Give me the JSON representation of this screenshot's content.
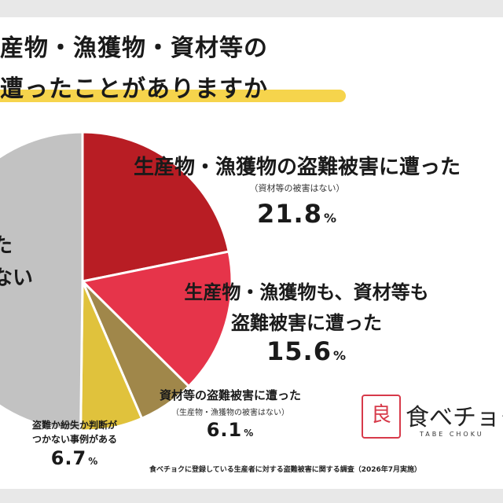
{
  "title": {
    "line1": "産物・漁獲物・資材等の",
    "line2": "遭ったことがありますか"
  },
  "chart_data": {
    "type": "pie",
    "slices": [
      {
        "label": "生産物・漁獲物の盗難被害に遭った",
        "note": "（資材等の被害はない）",
        "value": 21.8,
        "display": "21.8",
        "color": "#b81d24"
      },
      {
        "label": "生産物・漁獲物も、資材等も盗難被害に遭った",
        "note": "",
        "value": 15.6,
        "display": "15.6",
        "color": "#e6344a"
      },
      {
        "label": "資材等の盗難被害に遭った",
        "note": "（生産物・漁獲物の被害はない）",
        "value": 6.1,
        "display": "6.1",
        "color": "#a0874a"
      },
      {
        "label": "盗難か紛失か判断がつかない事例がある",
        "note": "",
        "value": 6.7,
        "display": "6.7",
        "color": "#e0c23c"
      },
      {
        "label": "…ない",
        "note": "",
        "value": 49.8,
        "display": "",
        "color": "#c2c2c2"
      }
    ],
    "unit": "%"
  },
  "labels": {
    "s1_line1": "生産物・漁獲物の盗難被害に遭った",
    "s1_note": "（資材等の被害はない）",
    "s1_pct": "21.8",
    "s2_line1": "生産物・漁獲物も、資材等も",
    "s2_line2": "盗難被害に遭った",
    "s2_pct": "15.6",
    "s3_line1": "資材等の盗難被害に遭った",
    "s3_note": "（生産物・漁獲物の被害はない）",
    "s3_pct": "6.1",
    "s4_line1": "盗難か紛失か判断が",
    "s4_line2": "つかない事例がある",
    "s4_pct": "6.7",
    "s5_line1": "た",
    "s5_line2": "ない",
    "unit": "%"
  },
  "logo": {
    "mark": "良",
    "name": "食べチョク",
    "roman": "TABE CHOKU"
  },
  "footnote": "食べチョクに登録している生産者に対する盗難被害に関する調査（2026年7月実施）"
}
